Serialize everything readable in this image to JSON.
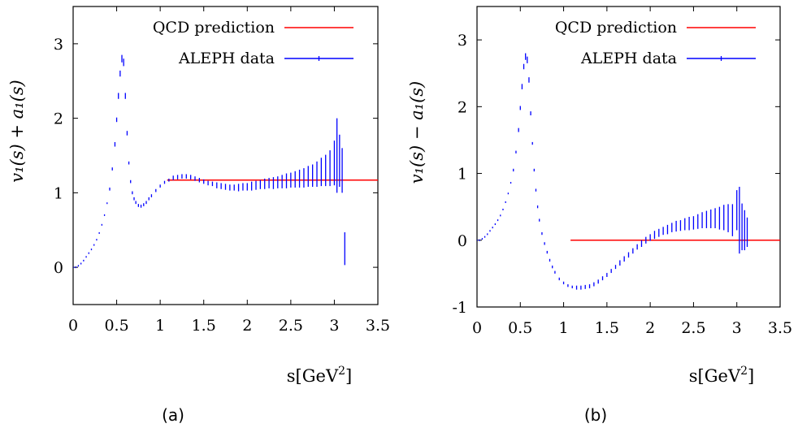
{
  "colors": {
    "qcd": "#ff0000",
    "aleph": "#0000ff"
  },
  "chart_data": [
    {
      "type": "line",
      "panel_caption": "(a)",
      "ylabel": "v₁(s) + a₁(s)",
      "xlabel_main": "s[GeV",
      "xlabel_sup": "2",
      "xlabel_end": "]",
      "xlim": [
        0,
        3.5
      ],
      "ylim": [
        -0.5,
        3.5
      ],
      "xticks": [
        0,
        0.5,
        1,
        1.5,
        2,
        2.5,
        3,
        3.5
      ],
      "xtick_labels": [
        "0",
        "0.5",
        "1",
        "1.5",
        "2",
        "2.5",
        "3",
        "3.5"
      ],
      "yticks": [
        0,
        1,
        2,
        3
      ],
      "ytick_labels": [
        "0",
        "1",
        "2",
        "3"
      ],
      "legend_position": "top-right",
      "series": [
        {
          "name": "QCD prediction",
          "kind": "line",
          "x": [
            1.08,
            3.5
          ],
          "y": [
            1.17,
            1.17
          ]
        },
        {
          "name": "ALEPH data",
          "kind": "errorbar",
          "x": [
            0.0,
            0.03,
            0.06,
            0.09,
            0.12,
            0.15,
            0.18,
            0.21,
            0.24,
            0.27,
            0.3,
            0.33,
            0.36,
            0.39,
            0.42,
            0.45,
            0.48,
            0.5,
            0.52,
            0.54,
            0.56,
            0.58,
            0.6,
            0.62,
            0.64,
            0.66,
            0.68,
            0.7,
            0.72,
            0.75,
            0.78,
            0.81,
            0.84,
            0.87,
            0.9,
            0.95,
            1.0,
            1.05,
            1.1,
            1.15,
            1.2,
            1.25,
            1.3,
            1.35,
            1.4,
            1.45,
            1.5,
            1.55,
            1.6,
            1.65,
            1.7,
            1.75,
            1.8,
            1.85,
            1.9,
            1.95,
            2.0,
            2.05,
            2.1,
            2.15,
            2.2,
            2.25,
            2.3,
            2.35,
            2.4,
            2.45,
            2.5,
            2.55,
            2.6,
            2.65,
            2.7,
            2.75,
            2.8,
            2.85,
            2.9,
            2.95,
            3.0,
            3.03,
            3.06,
            3.09,
            3.12
          ],
          "y": [
            0.0,
            0.0,
            0.02,
            0.05,
            0.09,
            0.14,
            0.19,
            0.24,
            0.3,
            0.37,
            0.46,
            0.57,
            0.7,
            0.86,
            1.05,
            1.32,
            1.65,
            1.98,
            2.3,
            2.6,
            2.8,
            2.75,
            2.3,
            1.8,
            1.4,
            1.15,
            1.0,
            0.92,
            0.87,
            0.83,
            0.82,
            0.84,
            0.87,
            0.92,
            0.96,
            1.03,
            1.09,
            1.14,
            1.17,
            1.2,
            1.21,
            1.22,
            1.22,
            1.21,
            1.19,
            1.17,
            1.15,
            1.13,
            1.12,
            1.1,
            1.09,
            1.08,
            1.07,
            1.07,
            1.07,
            1.08,
            1.08,
            1.09,
            1.1,
            1.11,
            1.12,
            1.13,
            1.13,
            1.14,
            1.15,
            1.16,
            1.17,
            1.18,
            1.19,
            1.2,
            1.22,
            1.23,
            1.25,
            1.28,
            1.3,
            1.33,
            1.4,
            1.5,
            1.43,
            1.3,
            0.25
          ],
          "err": [
            0.01,
            0.01,
            0.01,
            0.01,
            0.01,
            0.01,
            0.01,
            0.01,
            0.01,
            0.01,
            0.01,
            0.01,
            0.01,
            0.01,
            0.02,
            0.02,
            0.03,
            0.03,
            0.04,
            0.04,
            0.05,
            0.05,
            0.04,
            0.03,
            0.02,
            0.02,
            0.02,
            0.02,
            0.02,
            0.02,
            0.02,
            0.02,
            0.02,
            0.02,
            0.02,
            0.02,
            0.02,
            0.02,
            0.02,
            0.03,
            0.03,
            0.03,
            0.03,
            0.03,
            0.03,
            0.03,
            0.03,
            0.03,
            0.03,
            0.04,
            0.04,
            0.04,
            0.04,
            0.04,
            0.05,
            0.05,
            0.05,
            0.06,
            0.06,
            0.06,
            0.07,
            0.07,
            0.08,
            0.08,
            0.09,
            0.1,
            0.1,
            0.11,
            0.12,
            0.13,
            0.14,
            0.15,
            0.17,
            0.19,
            0.21,
            0.24,
            0.3,
            0.5,
            0.35,
            0.3,
            0.22
          ]
        }
      ]
    },
    {
      "type": "line",
      "panel_caption": "(b)",
      "ylabel": "v₁(s) − a₁(s)",
      "xlabel_main": "s[GeV",
      "xlabel_sup": "2",
      "xlabel_end": "]",
      "xlim": [
        0,
        3.5
      ],
      "ylim": [
        -1,
        3.5
      ],
      "xticks": [
        0,
        0.5,
        1,
        1.5,
        2,
        2.5,
        3,
        3.5
      ],
      "xtick_labels": [
        "0",
        "0.5",
        "1",
        "1.5",
        "2",
        "2.5",
        "3",
        "3.5"
      ],
      "yticks": [
        -1,
        0,
        1,
        2,
        3
      ],
      "ytick_labels": [
        "-1",
        "0",
        "1",
        "2",
        "3"
      ],
      "legend_position": "top-right",
      "series": [
        {
          "name": "QCD prediction",
          "kind": "line",
          "x": [
            1.08,
            3.5
          ],
          "y": [
            0.0,
            0.0
          ]
        },
        {
          "name": "ALEPH data",
          "kind": "errorbar",
          "x": [
            0.0,
            0.03,
            0.06,
            0.09,
            0.12,
            0.15,
            0.18,
            0.21,
            0.24,
            0.27,
            0.3,
            0.33,
            0.36,
            0.39,
            0.42,
            0.45,
            0.48,
            0.5,
            0.52,
            0.54,
            0.56,
            0.58,
            0.6,
            0.62,
            0.64,
            0.66,
            0.68,
            0.7,
            0.72,
            0.75,
            0.78,
            0.81,
            0.84,
            0.87,
            0.9,
            0.95,
            1.0,
            1.05,
            1.1,
            1.15,
            1.2,
            1.25,
            1.3,
            1.35,
            1.4,
            1.45,
            1.5,
            1.55,
            1.6,
            1.65,
            1.7,
            1.75,
            1.8,
            1.85,
            1.9,
            1.95,
            2.0,
            2.05,
            2.1,
            2.15,
            2.2,
            2.25,
            2.3,
            2.35,
            2.4,
            2.45,
            2.5,
            2.55,
            2.6,
            2.65,
            2.7,
            2.75,
            2.8,
            2.85,
            2.9,
            2.95,
            3.0,
            3.03,
            3.06,
            3.09,
            3.12
          ],
          "y": [
            0.0,
            0.0,
            0.02,
            0.05,
            0.09,
            0.14,
            0.19,
            0.24,
            0.3,
            0.37,
            0.46,
            0.57,
            0.7,
            0.86,
            1.05,
            1.32,
            1.65,
            1.98,
            2.3,
            2.6,
            2.75,
            2.7,
            2.4,
            1.9,
            1.45,
            1.05,
            0.75,
            0.5,
            0.3,
            0.1,
            -0.05,
            -0.18,
            -0.3,
            -0.4,
            -0.48,
            -0.58,
            -0.64,
            -0.68,
            -0.7,
            -0.71,
            -0.71,
            -0.7,
            -0.69,
            -0.66,
            -0.62,
            -0.57,
            -0.52,
            -0.46,
            -0.4,
            -0.34,
            -0.28,
            -0.22,
            -0.16,
            -0.1,
            -0.05,
            0.0,
            0.04,
            0.08,
            0.11,
            0.14,
            0.16,
            0.19,
            0.21,
            0.22,
            0.24,
            0.25,
            0.26,
            0.28,
            0.3,
            0.31,
            0.32,
            0.33,
            0.33,
            0.34,
            0.33,
            0.3,
            0.45,
            0.3,
            0.2,
            0.15,
            0.12
          ],
          "err": [
            0.01,
            0.01,
            0.01,
            0.01,
            0.01,
            0.01,
            0.01,
            0.01,
            0.01,
            0.01,
            0.01,
            0.01,
            0.01,
            0.01,
            0.02,
            0.02,
            0.03,
            0.03,
            0.04,
            0.04,
            0.05,
            0.05,
            0.04,
            0.03,
            0.02,
            0.02,
            0.02,
            0.02,
            0.02,
            0.02,
            0.02,
            0.02,
            0.02,
            0.02,
            0.02,
            0.02,
            0.02,
            0.02,
            0.02,
            0.03,
            0.03,
            0.03,
            0.03,
            0.03,
            0.03,
            0.03,
            0.03,
            0.03,
            0.03,
            0.04,
            0.04,
            0.04,
            0.04,
            0.04,
            0.05,
            0.05,
            0.05,
            0.06,
            0.06,
            0.06,
            0.07,
            0.07,
            0.08,
            0.08,
            0.09,
            0.1,
            0.1,
            0.11,
            0.12,
            0.13,
            0.14,
            0.15,
            0.17,
            0.19,
            0.21,
            0.24,
            0.3,
            0.5,
            0.35,
            0.3,
            0.22
          ]
        }
      ]
    }
  ]
}
